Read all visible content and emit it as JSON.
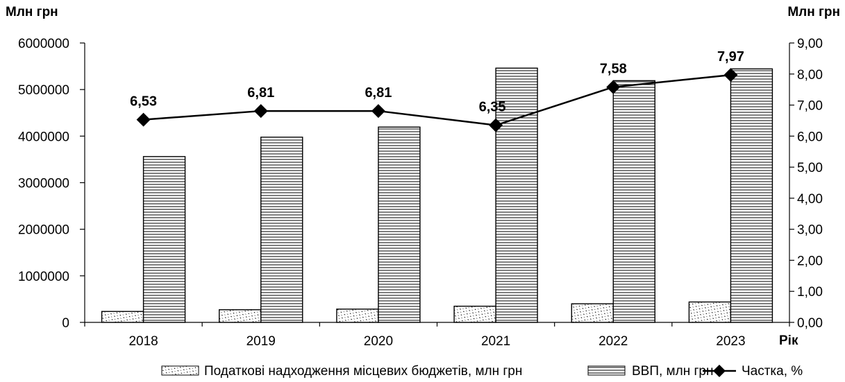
{
  "chart_data": {
    "type": "bar+line",
    "categories": [
      "2018",
      "2019",
      "2020",
      "2021",
      "2022",
      "2023"
    ],
    "x_axis_label": "Рік",
    "y_left_title": "Млн грн",
    "y_right_title": "Млн грн",
    "y_left_range": [
      0,
      6000000
    ],
    "y_left_ticks": [
      "0",
      "1000000",
      "2000000",
      "3000000",
      "4000000",
      "5000000",
      "6000000"
    ],
    "y_right_range": [
      0,
      9
    ],
    "y_right_ticks": [
      "0,00",
      "1,00",
      "2,00",
      "3,00",
      "4,00",
      "5,00",
      "6,00",
      "7,00",
      "8,00",
      "9,00"
    ],
    "grid": false,
    "legend_position": "bottom",
    "series": [
      {
        "name": "Податкові надходження місцевих бюджетів, млн грн",
        "type": "bar",
        "axis": "left",
        "pattern": "diagonal-dots",
        "values": [
          234700,
          271700,
          285000,
          347500,
          399300,
          438300
        ]
      },
      {
        "name": "ВВП, млн грн",
        "type": "bar",
        "axis": "left",
        "pattern": "horizontal-lines",
        "values": [
          3560600,
          3977200,
          4194100,
          5459600,
          5191000,
          5443800
        ]
      },
      {
        "name": "Частка, %",
        "type": "line",
        "axis": "right",
        "marker": "diamond",
        "values": [
          6.53,
          6.81,
          6.81,
          6.35,
          7.58,
          7.97
        ],
        "labels": [
          "6,53",
          "6,81",
          "6,81",
          "6,35",
          "7,58",
          "7,97"
        ]
      }
    ]
  }
}
